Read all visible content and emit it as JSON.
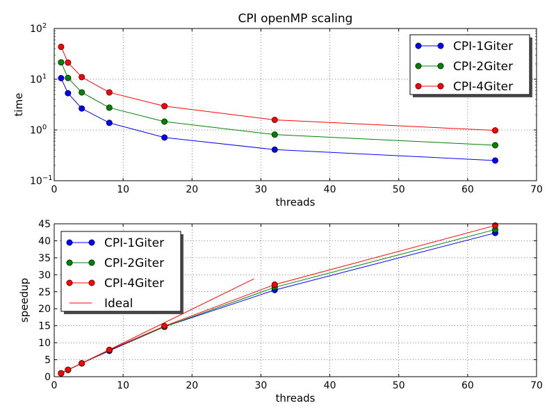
{
  "chart_data": [
    {
      "type": "line",
      "title": "CPI openMP scaling",
      "xlabel": "threads",
      "ylabel": "time",
      "xlim": [
        0,
        70
      ],
      "ylim": [
        0.1,
        100
      ],
      "yscale": "log",
      "grid": true,
      "legend_position": "top-right",
      "x_ticks": [
        "0",
        "10",
        "20",
        "30",
        "40",
        "50",
        "60",
        "70"
      ],
      "y_ticks": [
        {
          "value": 0.1,
          "base": "10",
          "exp": "−1"
        },
        {
          "value": 1,
          "base": "10",
          "exp": "0"
        },
        {
          "value": 10,
          "base": "10",
          "exp": "1"
        },
        {
          "value": 100,
          "base": "10",
          "exp": "2"
        }
      ],
      "x": [
        1,
        2,
        4,
        8,
        16,
        32,
        64
      ],
      "series": [
        {
          "name": "CPI-1Giter",
          "color": "#0000ff",
          "values": [
            10.5,
            5.3,
            2.65,
            1.38,
            0.71,
            0.41,
            0.25
          ]
        },
        {
          "name": "CPI-2Giter",
          "color": "#008000",
          "values": [
            21.5,
            10.6,
            5.5,
            2.75,
            1.46,
            0.81,
            0.5
          ]
        },
        {
          "name": "CPI-4Giter",
          "color": "#ff0000",
          "values": [
            43.5,
            21.3,
            11.0,
            5.5,
            2.95,
            1.58,
            0.98
          ]
        }
      ]
    },
    {
      "type": "line",
      "title": "",
      "xlabel": "threads",
      "ylabel": "speedup",
      "xlim": [
        0,
        70
      ],
      "ylim": [
        0,
        45
      ],
      "grid": true,
      "legend_position": "top-left",
      "x_ticks": [
        "0",
        "10",
        "20",
        "30",
        "40",
        "50",
        "60",
        "70"
      ],
      "y_ticks": [
        "0",
        "5",
        "10",
        "15",
        "20",
        "25",
        "30",
        "35",
        "40",
        "45"
      ],
      "x": [
        1,
        2,
        4,
        8,
        16,
        32,
        64
      ],
      "series": [
        {
          "name": "CPI-1Giter",
          "color": "#0000ff",
          "values": [
            1,
            1.98,
            3.96,
            7.6,
            14.7,
            25.5,
            42.3
          ]
        },
        {
          "name": "CPI-2Giter",
          "color": "#008000",
          "values": [
            1,
            2.0,
            3.9,
            7.8,
            14.7,
            26.3,
            43.3
          ]
        },
        {
          "name": "CPI-4Giter",
          "color": "#ff0000",
          "values": [
            1,
            2.05,
            3.95,
            7.9,
            14.9,
            27.1,
            44.5
          ]
        }
      ],
      "ideal": {
        "name": "Ideal",
        "color": "#ff0000",
        "x": [
          1,
          29
        ],
        "values": [
          1,
          28.8
        ]
      }
    }
  ]
}
